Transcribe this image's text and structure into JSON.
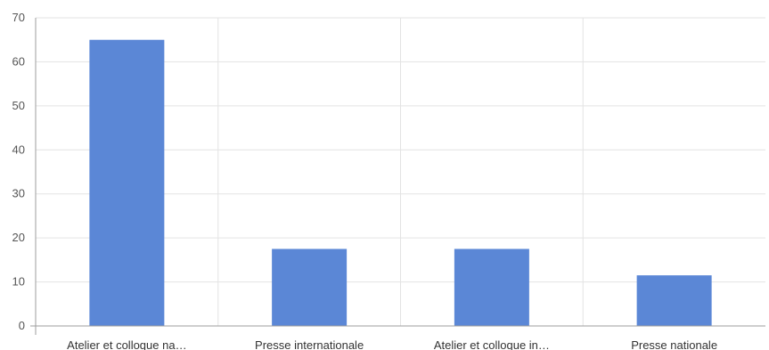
{
  "chart_data": {
    "type": "bar",
    "categories": [
      "Atelier et colloque na…",
      "Presse internationale",
      "Atelier et colloque in…",
      "Presse nationale"
    ],
    "values": [
      65,
      17.5,
      17.5,
      11.5
    ],
    "title": "",
    "xlabel": "",
    "ylabel": "",
    "ylim": [
      0,
      70
    ],
    "yticks": [
      "0",
      "10",
      "20",
      "30",
      "40",
      "50",
      "60",
      "70"
    ],
    "grid": true,
    "legend": "none",
    "bar_color": "#5b87d6"
  }
}
